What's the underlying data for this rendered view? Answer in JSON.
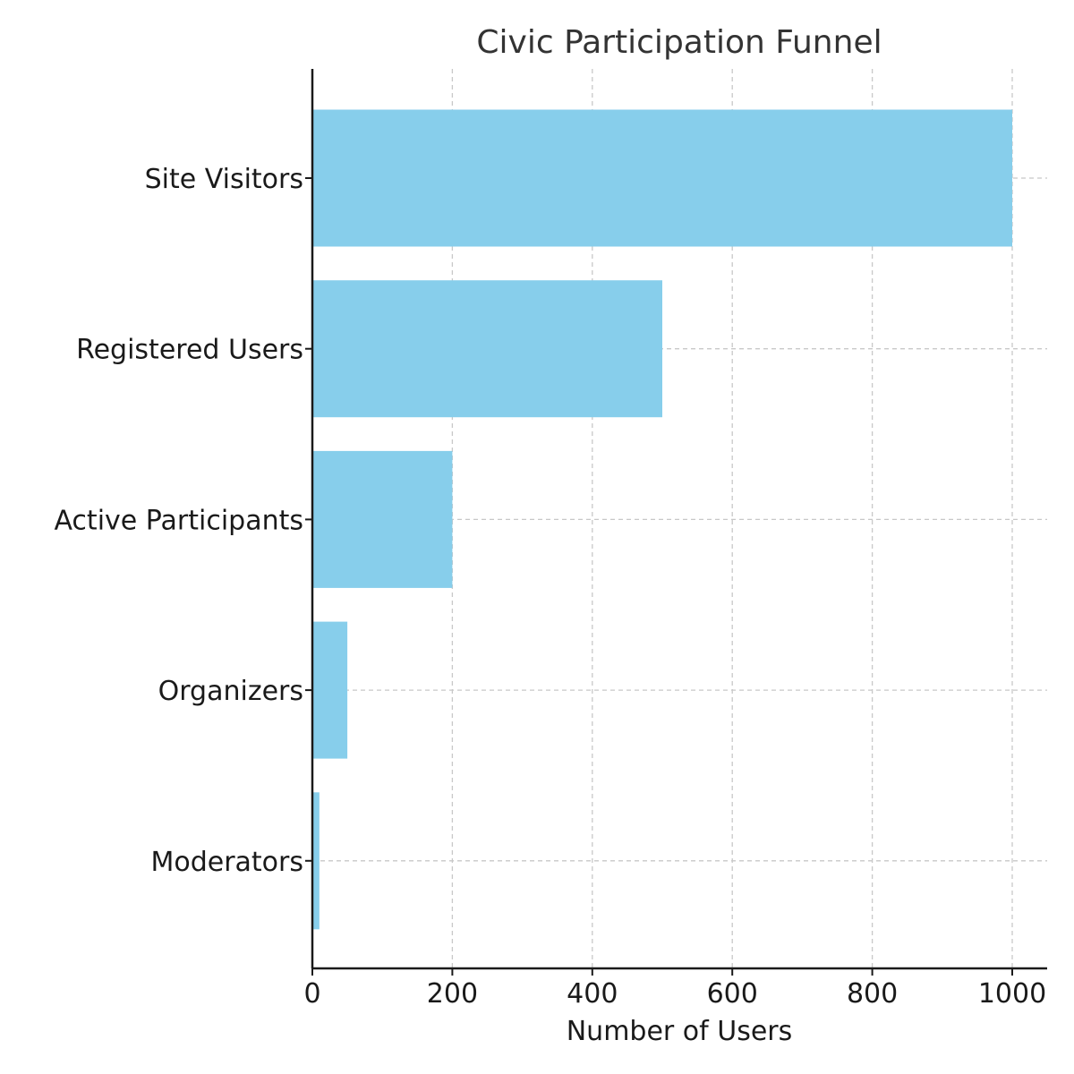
{
  "chart_data": {
    "type": "bar",
    "orientation": "horizontal",
    "title": "Civic Participation Funnel",
    "xlabel": "Number of Users",
    "ylabel": "",
    "categories": [
      "Site Visitors",
      "Registered Users",
      "Active Participants",
      "Organizers",
      "Moderators"
    ],
    "values": [
      1000,
      500,
      200,
      50,
      10
    ],
    "xlim": [
      0,
      1050
    ],
    "xticks": [
      0,
      200,
      400,
      600,
      800,
      1000
    ],
    "xtick_labels": [
      "0",
      "200",
      "400",
      "600",
      "800",
      "1000"
    ],
    "grid": true,
    "bar_color": "#87ceeb"
  }
}
